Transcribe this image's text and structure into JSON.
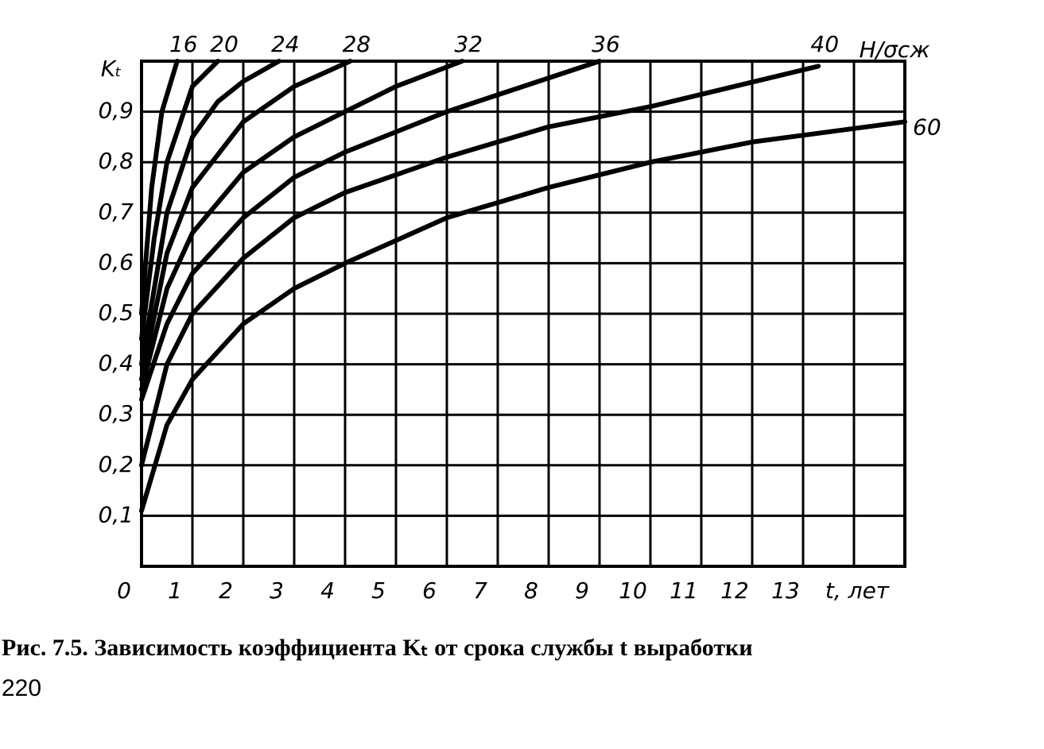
{
  "chart_data": {
    "type": "line",
    "x_label": "t, лет",
    "y_label": "Kₜ",
    "legend_title": "H/σсж",
    "caption": "Рис. 7.5. Зависимость коэффициента Kₜ от срока службы t выработки",
    "page_number": "220",
    "xlim": [
      0,
      15
    ],
    "ylim": [
      0,
      1
    ],
    "xticks": [
      0,
      1,
      2,
      3,
      4,
      5,
      6,
      7,
      8,
      9,
      10,
      11,
      12,
      13
    ],
    "yticks": [
      {
        "value": 0.1,
        "label": "0,1"
      },
      {
        "value": 0.2,
        "label": "0,2"
      },
      {
        "value": 0.3,
        "label": "0,3"
      },
      {
        "value": 0.4,
        "label": "0,4"
      },
      {
        "value": 0.5,
        "label": "0,5"
      },
      {
        "value": 0.6,
        "label": "0,6"
      },
      {
        "value": 0.7,
        "label": "0,7"
      },
      {
        "value": 0.8,
        "label": "0,8"
      },
      {
        "value": 0.9,
        "label": "0,9"
      }
    ],
    "grid": true,
    "series": [
      {
        "name": "16",
        "color": "#000000",
        "x": [
          0,
          0.2,
          0.4,
          0.7
        ],
        "values": [
          0.5,
          0.75,
          0.9,
          1.0
        ]
      },
      {
        "name": "20",
        "color": "#000000",
        "x": [
          0,
          0.25,
          0.5,
          1,
          1.5
        ],
        "values": [
          0.45,
          0.65,
          0.8,
          0.95,
          1.0
        ]
      },
      {
        "name": "24",
        "color": "#000000",
        "x": [
          0,
          0.5,
          1,
          1.5,
          2,
          2.7
        ],
        "values": [
          0.4,
          0.7,
          0.85,
          0.92,
          0.96,
          1.0
        ]
      },
      {
        "name": "28",
        "color": "#000000",
        "x": [
          0,
          0.5,
          1,
          2,
          3,
          4.1
        ],
        "values": [
          0.37,
          0.62,
          0.75,
          0.88,
          0.95,
          1.0
        ]
      },
      {
        "name": "32",
        "color": "#000000",
        "x": [
          0,
          0.5,
          1,
          2,
          3,
          4,
          5,
          6.3
        ],
        "values": [
          0.35,
          0.55,
          0.66,
          0.78,
          0.85,
          0.9,
          0.95,
          1.0
        ]
      },
      {
        "name": "36",
        "color": "#000000",
        "x": [
          0,
          0.5,
          1,
          2,
          3,
          4,
          6,
          9
        ],
        "values": [
          0.33,
          0.48,
          0.58,
          0.69,
          0.77,
          0.82,
          0.9,
          1.0
        ]
      },
      {
        "name": "40",
        "color": "#000000",
        "x": [
          0,
          0.5,
          1,
          2,
          3,
          4,
          6,
          8,
          10,
          13.3
        ],
        "values": [
          0.2,
          0.4,
          0.5,
          0.61,
          0.69,
          0.74,
          0.81,
          0.87,
          0.91,
          0.99
        ]
      },
      {
        "name": "60",
        "color": "#000000",
        "x": [
          0,
          0.5,
          1,
          2,
          3,
          4,
          6,
          8,
          10,
          12,
          15
        ],
        "values": [
          0.11,
          0.28,
          0.37,
          0.48,
          0.55,
          0.6,
          0.69,
          0.75,
          0.8,
          0.84,
          0.88
        ]
      }
    ]
  }
}
